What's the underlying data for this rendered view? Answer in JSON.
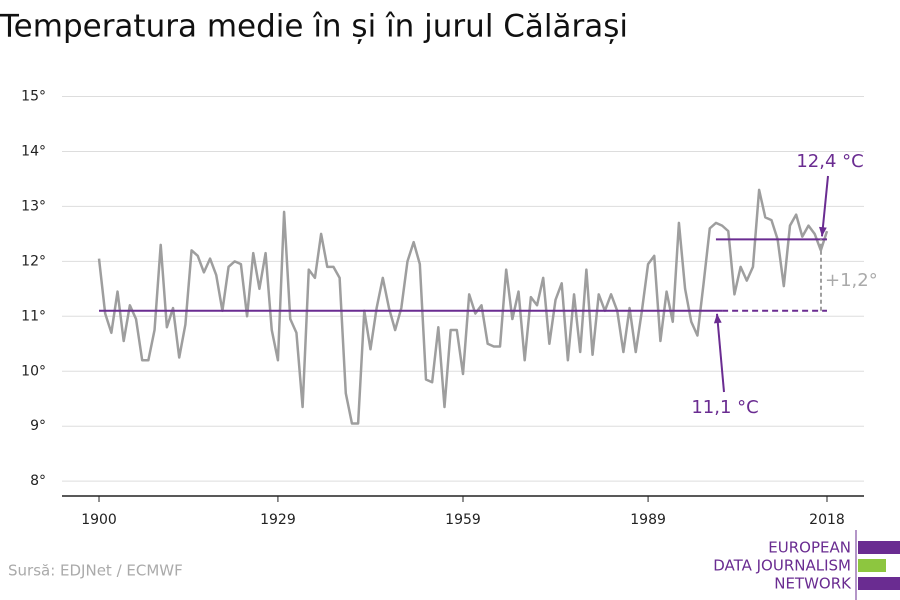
{
  "chart_data": {
    "type": "line",
    "title": "Temperatura medie în și în jurul Călărași",
    "source": "Sursă: EDJNet / ECMWF",
    "logo": [
      "EUROPEAN",
      "DATA JOURNALISM",
      "NETWORK"
    ],
    "x": [
      1900,
      1901,
      1902,
      1903,
      1904,
      1905,
      1906,
      1907,
      1908,
      1909,
      1910,
      1911,
      1912,
      1913,
      1914,
      1915,
      1916,
      1917,
      1918,
      1919,
      1920,
      1921,
      1922,
      1923,
      1924,
      1925,
      1926,
      1927,
      1928,
      1929,
      1930,
      1931,
      1932,
      1933,
      1934,
      1935,
      1936,
      1937,
      1938,
      1939,
      1940,
      1941,
      1942,
      1943,
      1944,
      1945,
      1946,
      1947,
      1948,
      1949,
      1950,
      1951,
      1952,
      1953,
      1954,
      1955,
      1956,
      1957,
      1958,
      1959,
      1960,
      1961,
      1962,
      1963,
      1964,
      1965,
      1966,
      1967,
      1968,
      1969,
      1970,
      1971,
      1972,
      1973,
      1974,
      1975,
      1976,
      1977,
      1978,
      1979,
      1980,
      1981,
      1982,
      1983,
      1984,
      1985,
      1986,
      1987,
      1988,
      1989,
      1990,
      1991,
      1992,
      1993,
      1994,
      1995,
      1996,
      1997,
      1998,
      1999,
      2000,
      2001,
      2002,
      2003,
      2004,
      2005,
      2006,
      2007,
      2008,
      2009,
      2010,
      2011,
      2012,
      2013,
      2014,
      2015,
      2016,
      2017,
      2018
    ],
    "series": [
      {
        "color": "#9e9e9e",
        "values": [
          12.05,
          11.05,
          10.7,
          11.45,
          10.55,
          11.2,
          10.95,
          10.2,
          10.2,
          10.75,
          12.3,
          10.8,
          11.15,
          10.25,
          10.85,
          12.2,
          12.1,
          11.8,
          12.05,
          11.75,
          11.1,
          11.9,
          12.0,
          11.95,
          11.0,
          12.15,
          11.5,
          12.15,
          10.75,
          10.2,
          12.9,
          10.95,
          10.7,
          9.35,
          11.85,
          11.7,
          12.5,
          11.9,
          11.9,
          11.7,
          9.6,
          9.05,
          9.05,
          11.1,
          10.4,
          11.15,
          11.7,
          11.15,
          10.75,
          11.15,
          12.0,
          12.35,
          11.95,
          9.85,
          9.8,
          10.8,
          9.35,
          10.75,
          10.75,
          9.95,
          11.4,
          11.05,
          11.2,
          10.5,
          10.45,
          10.45,
          11.85,
          10.95,
          11.45,
          10.2,
          11.35,
          11.2,
          11.7,
          10.5,
          11.3,
          11.6,
          10.2,
          11.4,
          10.35,
          11.85,
          10.3,
          11.4,
          11.1,
          11.4,
          11.1,
          10.35,
          11.15,
          10.35,
          11.1,
          11.95,
          12.1,
          10.55,
          11.45,
          10.9,
          12.7,
          11.5,
          10.9,
          10.65,
          11.6,
          12.6,
          12.7,
          12.65,
          12.55,
          11.4,
          11.9,
          11.65,
          11.9,
          13.3,
          12.8,
          12.75,
          12.4,
          11.55,
          12.65,
          12.85,
          12.45,
          12.65,
          12.5,
          12.2,
          12.55
        ]
      }
    ],
    "reference_lines": [
      {
        "value": 11.1,
        "label": "11,1 °C",
        "from": 1900,
        "dashed_from": 2001,
        "to": 2018,
        "color": "#6a2c91"
      },
      {
        "value": 12.4,
        "label": "12,4 °C",
        "from": 2000,
        "to": 2018,
        "color": "#6a2c91"
      }
    ],
    "difference": {
      "value": 1.2,
      "label": "+1,2°",
      "color": "#9e9e9e"
    },
    "xlim": [
      1894,
      2024
    ],
    "xticks": [
      1900,
      1929,
      1959,
      1989,
      2018
    ],
    "ylim": [
      7.73,
      15.3
    ],
    "yticks": [
      {
        "value": 8,
        "label": "8°"
      },
      {
        "value": 9,
        "label": "9°"
      },
      {
        "value": 10,
        "label": "10°"
      },
      {
        "value": 11,
        "label": "11°"
      },
      {
        "value": 12,
        "label": "12°"
      },
      {
        "value": 13,
        "label": "13°"
      },
      {
        "value": 14,
        "label": "14°"
      },
      {
        "value": 15,
        "label": "15°"
      }
    ],
    "grid": true
  }
}
